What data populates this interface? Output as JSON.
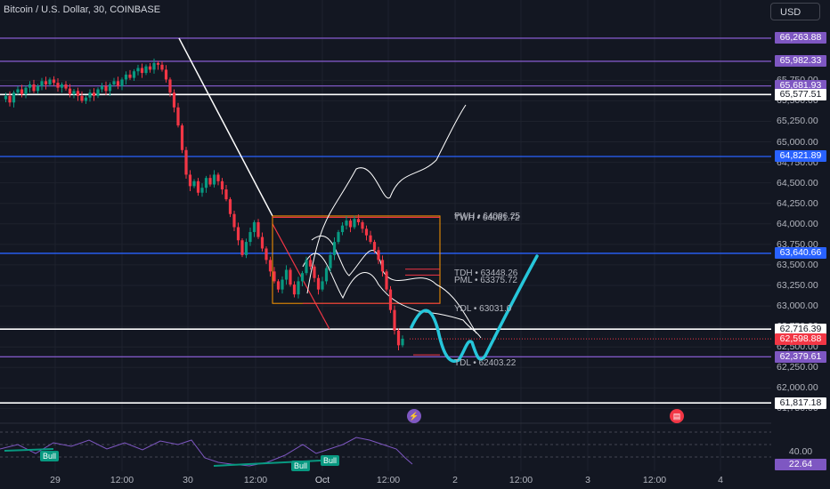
{
  "header": {
    "symbol_title": "Bitcoin / U.S. Dollar, 30, COINBASE",
    "currency_button": "USD"
  },
  "colors": {
    "background": "#131722",
    "bull_candle": "#089981",
    "bear_candle": "#f23645",
    "purple_level": "#7e57c2",
    "blue_level": "#2962ff",
    "white_level": "#ffffff",
    "red_price": "#f23645",
    "drawing_cyan": "#26c6da",
    "orange_box": "#ff9800",
    "rsi_line": "#7e57c2"
  },
  "price_axis": {
    "ticks": [
      "65,750.00",
      "65,500.00",
      "65,250.00",
      "65,000.00",
      "64,750.00",
      "64,500.00",
      "64,250.00",
      "64,000.00",
      "63,750.00",
      "63,500.00",
      "63,250.00",
      "63,000.00",
      "62,750.00",
      "62,500.00",
      "62,250.00",
      "62,000.00",
      "61,750.00"
    ],
    "price_tags": [
      {
        "label": "66,263.88",
        "kind": "purple"
      },
      {
        "label": "65,982.33",
        "kind": "purple"
      },
      {
        "label": "65,681.93",
        "kind": "purple"
      },
      {
        "label": "65,577.51",
        "kind": "white"
      },
      {
        "label": "64,821.89",
        "kind": "blue"
      },
      {
        "label": "63,640.66",
        "kind": "blue"
      },
      {
        "label": "62,716.39",
        "kind": "white"
      },
      {
        "label": "62,598.88",
        "kind": "red"
      },
      {
        "label": "62,379.61",
        "kind": "purple"
      },
      {
        "label": "61,817.18",
        "kind": "white"
      }
    ]
  },
  "time_axis": {
    "ticks": [
      "29",
      "12:00",
      "30",
      "12:00",
      "Oct",
      "12:00",
      "2",
      "12:00",
      "3",
      "12:00",
      "4"
    ]
  },
  "level_labels": {
    "pwh": "PWH • 64096.25",
    "twh": "TWH • 64061.72",
    "tdh": "TDH • 63448.26",
    "pml": "PML • 63375.72",
    "ydl": "YDL • 63031.0",
    "tdl": "TDL • 62403.22"
  },
  "rsi_panel": {
    "value_tag": "22.64",
    "level_label": "40.00",
    "bull_labels": [
      "Bull",
      "Bull",
      "Bull"
    ]
  },
  "events": {
    "flash_icon": "lightning-icon",
    "flag_icon": "us-flag-icon"
  },
  "chart_data": {
    "type": "candlestick",
    "symbol": "Bitcoin / U.S. Dollar, 30, COINBASE",
    "ylim": [
      61700,
      66350
    ],
    "y_ticks": [
      61750,
      62000,
      62250,
      62500,
      62750,
      63000,
      63250,
      63500,
      63750,
      64000,
      64250,
      64500,
      64750,
      65000,
      65250,
      65500,
      65750
    ],
    "horizontal_levels": [
      66263.88,
      65982.33,
      65681.93,
      65577.51,
      64821.89,
      63640.66,
      62716.39,
      62598.88,
      62379.61,
      61817.18
    ],
    "annotated_levels": {
      "PWH": 64096.25,
      "TWH": 64061.72,
      "TDH": 63448.26,
      "PML": 63375.72,
      "YDL": 63031.0,
      "TDL": 62403.22
    },
    "last_price": 62598.88,
    "rsi_last": 22.64,
    "close_path": [
      65520,
      65560,
      65480,
      65600,
      65640,
      65580,
      65660,
      65700,
      65620,
      65680,
      65740,
      65700,
      65760,
      65720,
      65660,
      65700,
      65650,
      65580,
      65620,
      65560,
      65500,
      65540,
      65600,
      65560,
      65640,
      65680,
      65620,
      65700,
      65740,
      65680,
      65760,
      65820,
      65780,
      65860,
      65900,
      65840,
      65920,
      65880,
      65960,
      65940,
      65880,
      65760,
      65600,
      65420,
      65200,
      64900,
      64600,
      64460,
      64520,
      64380,
      64440,
      64560,
      64480,
      64600,
      64520,
      64420,
      64300,
      64120,
      63960,
      63800,
      63620,
      63780,
      63900,
      64020,
      63840,
      63700,
      63560,
      63420,
      63300,
      63200,
      63320,
      63440,
      63260,
      63140,
      63300,
      63400,
      63560,
      63480,
      63340,
      63200,
      63300,
      63460,
      63620,
      63780,
      63900,
      63980,
      64040,
      63960,
      64060,
      64020,
      63940,
      63860,
      63780,
      63680,
      63560,
      63420,
      63200,
      62950,
      62700,
      62520,
      62600
    ]
  }
}
